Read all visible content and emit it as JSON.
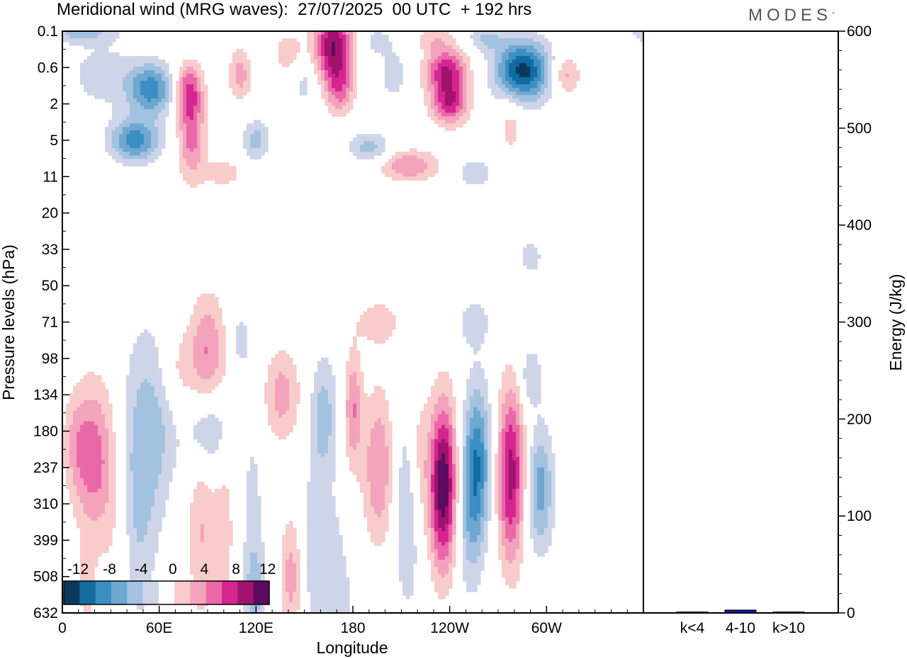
{
  "title": "Meridional wind (MRG waves):  27/07/2025  00 UTC  + 192 hrs",
  "logo": {
    "text": "MODES",
    "mark": "°"
  },
  "colors": {
    "neg": [
      "#0b3a5e",
      "#116c9f",
      "#3b8fc3",
      "#6fa7d0",
      "#a3c2df",
      "#cfd5e8"
    ],
    "pos": [
      "#f8cccb",
      "#f3a3bc",
      "#ea68a8",
      "#d52590",
      "#a1126e",
      "#5c0a5f"
    ],
    "bar": "#16169a"
  },
  "chart_data": [
    {
      "type": "heatmap",
      "title": "Meridional wind (MRG waves)",
      "xlabel": "Longitude",
      "ylabel": "Pressure levels (hPa)",
      "x_ticks": [
        "0",
        "60E",
        "120E",
        "180",
        "120W",
        "60W"
      ],
      "y_levels": [
        "0.1",
        "0.6",
        "2",
        "5",
        "11",
        "20",
        "33",
        "50",
        "71",
        "98",
        "134",
        "180",
        "237",
        "310",
        "399",
        "508",
        "632"
      ],
      "colorbar": {
        "labels": [
          "-12",
          "-8",
          "-4",
          "0",
          "4",
          "8",
          "12"
        ],
        "levels": [
          -14,
          -12,
          -10,
          -8,
          -6,
          -4,
          -2,
          2,
          4,
          6,
          8,
          10,
          12,
          14
        ]
      },
      "features": [
        {
          "lon": 12,
          "level": 0.0,
          "value": -5,
          "wlon": 14,
          "wlev": 0.22
        },
        {
          "lon": 55,
          "level": 1.6,
          "value": -9,
          "wlon": 10,
          "wlev": 0.5
        },
        {
          "lon": 45,
          "level": 3.0,
          "value": -9,
          "wlon": 11,
          "wlev": 0.42
        },
        {
          "lon": 25,
          "level": 1.2,
          "value": -3,
          "wlon": 16,
          "wlev": 0.7
        },
        {
          "lon": 78,
          "level": 1.6,
          "value": 7,
          "wlon": 6,
          "wlev": 0.5
        },
        {
          "lon": 80,
          "level": 2.8,
          "value": 7,
          "wlon": 6,
          "wlev": 0.9
        },
        {
          "lon": 110,
          "level": 1.2,
          "value": 5,
          "wlon": 5,
          "wlev": 0.5
        },
        {
          "lon": 120,
          "level": 3.0,
          "value": -5,
          "wlon": 6,
          "wlev": 0.4
        },
        {
          "lon": 140,
          "level": 0.6,
          "value": 3,
          "wlon": 8,
          "wlev": 0.5
        },
        {
          "lon": 150,
          "level": 1.4,
          "value": -3,
          "wlon": 5,
          "wlev": 0.5
        },
        {
          "lon": 168,
          "level": 0.4,
          "value": 12,
          "wlon": 8,
          "wlev": 0.7
        },
        {
          "lon": 172,
          "level": 1.6,
          "value": 6,
          "wlon": 6,
          "wlev": 0.5
        },
        {
          "lon": 196,
          "level": 0.3,
          "value": -3,
          "wlon": 7,
          "wlev": 0.3
        },
        {
          "lon": 205,
          "level": 1.2,
          "value": -4,
          "wlon": 5,
          "wlev": 0.4
        },
        {
          "lon": 190,
          "level": 3.2,
          "value": -5,
          "wlon": 9,
          "wlev": 0.3
        },
        {
          "lon": 215,
          "level": 3.7,
          "value": 6,
          "wlon": 13,
          "wlev": 0.3
        },
        {
          "lon": 238,
          "level": 1.1,
          "value": 10,
          "wlon": 9,
          "wlev": 0.45
        },
        {
          "lon": 240,
          "level": 2.0,
          "value": 9,
          "wlon": 8,
          "wlev": 0.4
        },
        {
          "lon": 230,
          "level": 0.2,
          "value": 3,
          "wlon": 8,
          "wlev": 0.25
        },
        {
          "lon": 262,
          "level": 0.2,
          "value": -4,
          "wlon": 8,
          "wlev": 0.25
        },
        {
          "lon": 285,
          "level": 1.1,
          "value": -13,
          "wlon": 12,
          "wlev": 0.6
        },
        {
          "lon": 312,
          "level": 1.2,
          "value": 5,
          "wlon": 6,
          "wlev": 0.4
        },
        {
          "lon": 278,
          "level": 2.5,
          "value": 3,
          "wlon": 6,
          "wlev": 0.7
        },
        {
          "lon": 255,
          "level": 3.9,
          "value": -3,
          "wlon": 10,
          "wlev": 0.35
        },
        {
          "lon": 100,
          "level": 3.9,
          "value": 3,
          "wlon": 10,
          "wlev": 0.3
        },
        {
          "lon": 20,
          "level": 11.8,
          "value": 7,
          "wlon": 9,
          "wlev": 1.5
        },
        {
          "lon": 8,
          "level": 11.3,
          "value": 3,
          "wlon": 6,
          "wlev": 1.0
        },
        {
          "lon": 36,
          "level": 14.5,
          "value": 3,
          "wlon": 7,
          "wlev": 2.0
        },
        {
          "lon": 50,
          "level": 11.6,
          "value": -4,
          "wlon": 9,
          "wlev": 2.5
        },
        {
          "lon": 42,
          "level": 14.0,
          "value": -3,
          "wlon": 8,
          "wlev": 2.5
        },
        {
          "lon": 62,
          "level": 10.6,
          "value": -3,
          "wlon": 8,
          "wlev": 1.6
        },
        {
          "lon": 86,
          "level": 13.8,
          "value": 4,
          "wlon": 6,
          "wlev": 1.8
        },
        {
          "lon": 70,
          "level": 9.4,
          "value": 3,
          "wlon": 8,
          "wlev": 0.9
        },
        {
          "lon": 90,
          "level": 11.0,
          "value": -5,
          "wlon": 10,
          "wlev": 0.8
        },
        {
          "lon": 100,
          "level": 13.8,
          "value": 3,
          "wlon": 5,
          "wlev": 1.8
        },
        {
          "lon": 90,
          "level": 8.8,
          "value": 6,
          "wlon": 8,
          "wlev": 1.1
        },
        {
          "lon": 110,
          "level": 8.5,
          "value": -3,
          "wlon": 5,
          "wlev": 0.6
        },
        {
          "lon": 118,
          "level": 14.0,
          "value": -3,
          "wlon": 5,
          "wlev": 2.5
        },
        {
          "lon": 136,
          "level": 10.0,
          "value": 5,
          "wlon": 8,
          "wlev": 0.9
        },
        {
          "lon": 142,
          "level": 15.0,
          "value": 5,
          "wlon": 5,
          "wlev": 1.2
        },
        {
          "lon": 155,
          "level": 14.5,
          "value": -3,
          "wlon": 6,
          "wlev": 2.0
        },
        {
          "lon": 162,
          "level": 10.6,
          "value": -5,
          "wlon": 6,
          "wlev": 1.2
        },
        {
          "lon": 180,
          "level": 10.4,
          "value": 6,
          "wlon": 4,
          "wlev": 1.1
        },
        {
          "lon": 168,
          "level": 14.8,
          "value": -3,
          "wlon": 5,
          "wlev": 1.5
        },
        {
          "lon": 196,
          "level": 12.0,
          "value": 6,
          "wlon": 7,
          "wlev": 1.5
        },
        {
          "lon": 196,
          "level": 8.0,
          "value": 3,
          "wlon": 11,
          "wlev": 0.5
        },
        {
          "lon": 214,
          "level": 13.0,
          "value": -5,
          "wlon": 6,
          "wlev": 2.0
        },
        {
          "lon": 220,
          "level": 11.8,
          "value": 4,
          "wlon": 5,
          "wlev": 1.5
        },
        {
          "lon": 236,
          "level": 12.5,
          "value": 14,
          "wlon": 6,
          "wlev": 1.6
        },
        {
          "lon": 257,
          "level": 11.8,
          "value": -9,
          "wlon": 6,
          "wlev": 1.5
        },
        {
          "lon": 252,
          "level": 13.5,
          "value": -4,
          "wlon": 6,
          "wlev": 1.5
        },
        {
          "lon": 278,
          "level": 12.2,
          "value": 11,
          "wlon": 6,
          "wlev": 1.7
        },
        {
          "lon": 296,
          "level": 12.6,
          "value": -7,
          "wlon": 6,
          "wlev": 1.2
        },
        {
          "lon": 290,
          "level": 9.5,
          "value": -4,
          "wlon": 5,
          "wlev": 0.6
        },
        {
          "lon": 255,
          "level": 8.0,
          "value": -3,
          "wlon": 8,
          "wlev": 0.5
        },
        {
          "lon": 15,
          "level": 15.3,
          "value": 3,
          "wlon": 4,
          "wlev": 0.8
        },
        {
          "lon": 120,
          "level": 15.4,
          "value": -3,
          "wlon": 5,
          "wlev": 0.8
        },
        {
          "lon": 175,
          "level": 15.8,
          "value": -2,
          "wlon": 5,
          "wlev": 1.0
        },
        {
          "lon": 290,
          "level": 6.2,
          "value": -3,
          "wlon": 6,
          "wlev": 0.4
        }
      ]
    },
    {
      "type": "bar",
      "categories": [
        "k<4",
        "4-10",
        "k>10"
      ],
      "values": [
        1,
        3,
        1
      ],
      "ylabel": "Energy (J/kg)",
      "ylim": [
        0,
        600
      ],
      "y_ticks": [
        "0",
        "100",
        "200",
        "300",
        "400",
        "500",
        "600"
      ]
    }
  ]
}
